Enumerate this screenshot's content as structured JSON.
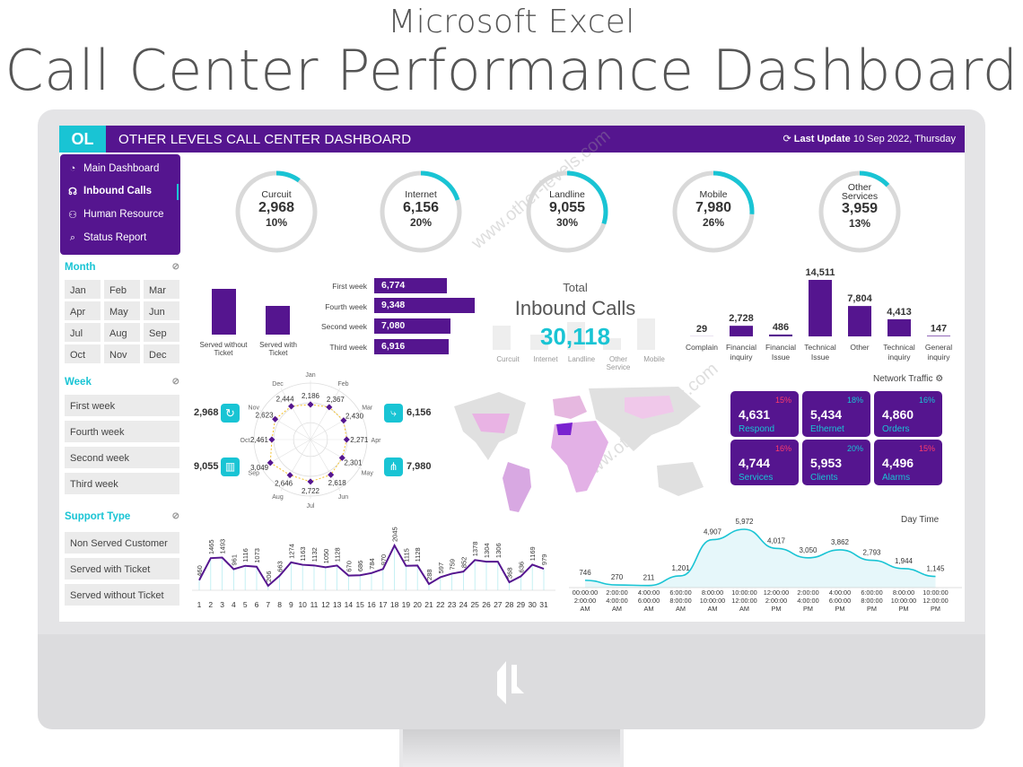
{
  "page": {
    "title_small": "Microsoft Excel",
    "title_big": "Call Center Performance Dashboard"
  },
  "header": {
    "title": "OTHER LEVELS CALL CENTER DASHBOARD",
    "last_update_label": "Last Update",
    "last_update_value": "10 Sep 2022, Thursday",
    "logo_text": "OL"
  },
  "nav": {
    "items": [
      {
        "label": "Main Dashboard",
        "icon": "pie-icon"
      },
      {
        "label": "Inbound Calls",
        "icon": "headset-icon"
      },
      {
        "label": "Human Resource",
        "icon": "people-icon"
      },
      {
        "label": "Status Report",
        "icon": "magnifier-icon"
      }
    ]
  },
  "filters": {
    "month_title": "Month",
    "months": [
      "Jan",
      "Feb",
      "Mar",
      "Apr",
      "May",
      "Jun",
      "Jul",
      "Aug",
      "Sep",
      "Oct",
      "Nov",
      "Dec"
    ],
    "week_title": "Week",
    "weeks": [
      "First week",
      "Fourth week",
      "Second week",
      "Third week"
    ],
    "support_title": "Support Type",
    "support": [
      "Non Served Customer",
      "Served with Ticket",
      "Served without Ticket"
    ]
  },
  "rings": [
    {
      "label": "Curcuit",
      "value": "2,968",
      "pct": "10%",
      "fraction": 0.1
    },
    {
      "label": "Internet",
      "value": "6,156",
      "pct": "20%",
      "fraction": 0.2
    },
    {
      "label": "Landline",
      "value": "9,055",
      "pct": "30%",
      "fraction": 0.3
    },
    {
      "label": "Mobile",
      "value": "7,980",
      "pct": "26%",
      "fraction": 0.26
    },
    {
      "label": "Other Services",
      "value": "3,959",
      "pct": "13%",
      "fraction": 0.13
    }
  ],
  "accent": "#19c4d4",
  "brand": "#55158f",
  "total": {
    "label1": "Total",
    "label2": "Inbound Calls",
    "value": "30,118",
    "categories": [
      "Curcuit",
      "Internet",
      "Landline",
      "Other Service",
      "Mobile"
    ]
  },
  "ticket_bars": {
    "labels": [
      "Served without Ticket",
      "Served with Ticket"
    ]
  },
  "week_bars": [
    {
      "label": "First week",
      "value": "6,774"
    },
    {
      "label": "Fourth week",
      "value": "9,348"
    },
    {
      "label": "Second week",
      "value": "7,080"
    },
    {
      "label": "Third week",
      "value": "6,916"
    }
  ],
  "network": {
    "title": "Network Traffic",
    "tiles": [
      {
        "value": "4,631",
        "name": "Respond",
        "pct": "15%",
        "color": "#ff3b6b"
      },
      {
        "value": "5,434",
        "name": "Ethernet",
        "pct": "18%",
        "color": "#19c4d4"
      },
      {
        "value": "4,860",
        "name": "Orders",
        "pct": "16%",
        "color": "#19c4d4"
      },
      {
        "value": "4,744",
        "name": "Services",
        "pct": "16%",
        "color": "#ff3b6b"
      },
      {
        "value": "5,953",
        "name": "Clients",
        "pct": "20%",
        "color": "#19c4d4"
      },
      {
        "value": "4,496",
        "name": "Alarms",
        "pct": "15%",
        "color": "#ff3b6b"
      }
    ]
  },
  "side_values": {
    "left_top": "2,968",
    "left_bottom": "9,055",
    "right_top": "6,156",
    "right_bottom": "7,980"
  },
  "chart_data": [
    {
      "type": "bar",
      "categories": [
        "Complain",
        "Financial inquiry",
        "Financial Issue",
        "Technical Issue",
        "Other",
        "Technical inquiry",
        "General inquiry"
      ],
      "values": [
        29,
        2728,
        486,
        14511,
        7804,
        4413,
        147
      ],
      "value_labels": [
        "29",
        "2,728",
        "486",
        "14,511",
        "7,804",
        "4,413",
        "147"
      ]
    },
    {
      "type": "radar",
      "categories": [
        "Jan",
        "Feb",
        "Mar",
        "Apr",
        "May",
        "Jun",
        "Jul",
        "Aug",
        "Sep",
        "Oct",
        "Nov",
        "Dec"
      ],
      "values": [
        2186,
        2367,
        2430,
        2271,
        2301,
        2618,
        2722,
        2646,
        3049,
        2461,
        2623,
        2444
      ],
      "value_labels": [
        "2,186",
        "2,367",
        "2,430",
        "2,271",
        "2,301",
        "2,618",
        "2,722",
        "2,646",
        "3,049",
        "2,461",
        "2,623",
        "2,444"
      ]
    },
    {
      "type": "line",
      "categories": [
        "1",
        "2",
        "3",
        "4",
        "5",
        "6",
        "7",
        "8",
        "9",
        "10",
        "11",
        "12",
        "13",
        "14",
        "15",
        "16",
        "17",
        "18",
        "19",
        "20",
        "21",
        "22",
        "23",
        "24",
        "25",
        "26",
        "27",
        "28",
        "29",
        "30",
        "31"
      ],
      "values": [
        460,
        1465,
        1493,
        961,
        1116,
        1073,
        206,
        663,
        1274,
        1163,
        1132,
        1050,
        1128,
        670,
        686,
        784,
        970,
        2045,
        1115,
        1128,
        288,
        597,
        759,
        852,
        1378,
        1304,
        1306,
        368,
        636,
        1169,
        979
      ]
    },
    {
      "type": "area",
      "title": "Day Time",
      "categories": [
        "00:00:00 2:00:00 AM",
        "2:00:00 4:00:00 AM",
        "4:00:00 6:00:00 AM",
        "6:00:00 8:00:00 AM",
        "8:00:00 10:00:00 AM",
        "10:00:00 12:00:00 AM",
        "12:00:00 2:00:00 PM",
        "2:00:00 4:00:00 PM",
        "4:00:00 6:00:00 PM",
        "6:00:00 8:00:00 PM",
        "8:00:00 10:00:00 PM",
        "10:00:00 12:00:00 PM"
      ],
      "values": [
        746,
        270,
        211,
        1201,
        4907,
        5972,
        4017,
        3050,
        3862,
        2793,
        1944,
        1145
      ],
      "value_labels": [
        "746",
        "270",
        "211",
        "1,201",
        "4,907",
        "5,972",
        "4,017",
        "3,050",
        "3,862",
        "2,793",
        "1,944",
        "1,145"
      ]
    }
  ]
}
